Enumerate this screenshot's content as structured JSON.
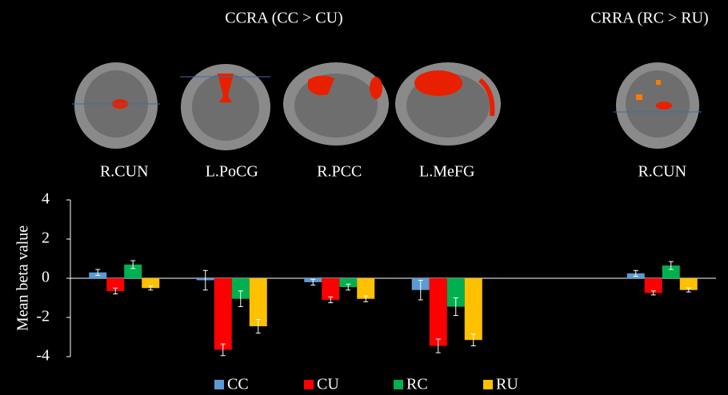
{
  "headers": [
    "CCRA (CC > CU)",
    "CRRA (RC > RU)"
  ],
  "chart_data": {
    "type": "bar",
    "y_label": "Mean beta value",
    "categories": [
      "R.CUN",
      "L.PoCG",
      "R.PCC",
      "L.MeFG",
      null,
      "R.CUN"
    ],
    "series": [
      {
        "name": "CC",
        "color": "#5b9bd5",
        "values": [
          0.3,
          -0.1,
          -0.2,
          -0.6,
          null,
          0.25
        ],
        "errors": [
          0.15,
          0.5,
          0.15,
          0.5,
          null,
          0.15
        ]
      },
      {
        "name": "CU",
        "color": "#ff0000",
        "values": [
          -0.65,
          -3.65,
          -1.1,
          -3.45,
          null,
          -0.75
        ],
        "errors": [
          0.15,
          0.3,
          0.15,
          0.35,
          null,
          0.1
        ]
      },
      {
        "name": "RC",
        "color": "#00b050",
        "values": [
          0.7,
          -1.05,
          -0.45,
          -1.45,
          null,
          0.65
        ],
        "errors": [
          0.2,
          0.4,
          0.15,
          0.45,
          null,
          0.2
        ]
      },
      {
        "name": "RU",
        "color": "#ffc000",
        "values": [
          -0.5,
          -2.45,
          -1.05,
          -3.15,
          null,
          -0.6
        ],
        "errors": [
          0.1,
          0.35,
          0.15,
          0.3,
          null,
          0.1
        ]
      }
    ],
    "ylim": [
      -4,
      4
    ],
    "yticks": [
      -4,
      -2,
      0,
      2,
      4
    ]
  }
}
